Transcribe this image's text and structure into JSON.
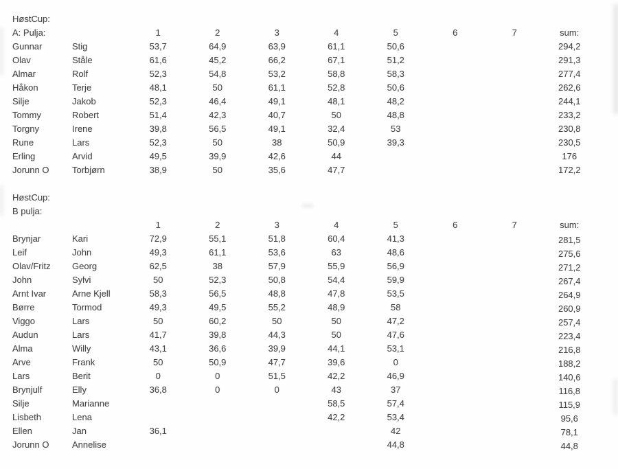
{
  "colors": {
    "text": "#454545",
    "background": "#fefefe"
  },
  "tables": [
    {
      "title": "HøstCup:",
      "subtitle": "A: Pulja:",
      "header": {
        "rounds": [
          "1",
          "2",
          "3",
          "4",
          "5",
          "6",
          "7"
        ],
        "sum": "sum:"
      },
      "rows": [
        [
          "Gunnar",
          "Stig",
          "53,7",
          "64,9",
          "63,9",
          "61,1",
          "50,6",
          "",
          "",
          "294,2"
        ],
        [
          "Olav",
          "Ståle",
          "61,6",
          "45,2",
          "66,2",
          "67,1",
          "51,2",
          "",
          "",
          "291,3"
        ],
        [
          "Almar",
          "Rolf",
          "52,3",
          "54,8",
          "53,2",
          "58,8",
          "58,3",
          "",
          "",
          "277,4"
        ],
        [
          "Håkon",
          "Terje",
          "48,1",
          "50",
          "61,1",
          "52,8",
          "50,6",
          "",
          "",
          "262,6"
        ],
        [
          "Silje",
          "Jakob",
          "52,3",
          "46,4",
          "49,1",
          "48,1",
          "48,2",
          "",
          "",
          "244,1"
        ],
        [
          "Tommy",
          "Robert",
          "51,4",
          "42,3",
          "40,7",
          "50",
          "48,8",
          "",
          "",
          "233,2"
        ],
        [
          "Torgny",
          "Irene",
          "39,8",
          "56,5",
          "49,1",
          "32,4",
          "53",
          "",
          "",
          "230,8"
        ],
        [
          "Rune",
          "Lars",
          "52,3",
          "50",
          "38",
          "50,9",
          "39,3",
          "",
          "",
          "230,5"
        ],
        [
          "Erling",
          "Arvid",
          "49,5",
          "39,9",
          "42,6",
          "44",
          "",
          "",
          "",
          "176"
        ],
        [
          "Jorunn O",
          "Torbjørn",
          "38,9",
          "50",
          "35,6",
          "47,7",
          "",
          "",
          "",
          "172,2"
        ]
      ]
    },
    {
      "title": "HøstCup:",
      "subtitle": "B pulja:",
      "header": {
        "rounds": [
          "1",
          "2",
          "3",
          "4",
          "5",
          "6",
          "7"
        ],
        "sum": "sum:"
      },
      "rows": [
        [
          "Brynjar",
          "Kari",
          "72,9",
          "55,1",
          "51,8",
          "60,4",
          "41,3",
          "",
          "",
          "281,5"
        ],
        [
          "Leif",
          "John",
          "49,3",
          "61,1",
          "53,6",
          "63",
          "48,6",
          "",
          "",
          "275,6"
        ],
        [
          "Olav/Fritz",
          "Georg",
          "62,5",
          "38",
          "57,9",
          "55,9",
          "56,9",
          "",
          "",
          "271,2"
        ],
        [
          "John",
          "Sylvi",
          "50",
          "52,3",
          "50,8",
          "54,4",
          "59,9",
          "",
          "",
          "267,4"
        ],
        [
          "Arnt Ivar",
          "Arne Kjell",
          "58,3",
          "56,5",
          "48,8",
          "47,8",
          "53,5",
          "",
          "",
          "264,9"
        ],
        [
          "Børre",
          "Tormod",
          "49,3",
          "49,5",
          "55,2",
          "48,9",
          "58",
          "",
          "",
          "260,9"
        ],
        [
          "Viggo",
          "Lars",
          "50",
          "60,2",
          "50",
          "50",
          "47,2",
          "",
          "",
          "257,4"
        ],
        [
          "Audun",
          "Lars",
          "41,7",
          "39,8",
          "44,3",
          "50",
          "47,6",
          "",
          "",
          "223,4"
        ],
        [
          "Alma",
          "Willy",
          "43,1",
          "36,6",
          "39,9",
          "44,1",
          "53,1",
          "",
          "",
          "216,8"
        ],
        [
          "Arve",
          "Frank",
          "50",
          "50,9",
          "47,7",
          "39,6",
          "0",
          "",
          "",
          "188,2"
        ],
        [
          "Lars",
          "Berit",
          "0",
          "0",
          "51,5",
          "42,2",
          "46,9",
          "",
          "",
          "140,6"
        ],
        [
          "Brynjulf",
          "Elly",
          "36,8",
          "0",
          "0",
          "43",
          "37",
          "",
          "",
          "116,8"
        ],
        [
          "Silje",
          "Marianne",
          "",
          "",
          "",
          "58,5",
          "57,4",
          "",
          "",
          "115,9"
        ],
        [
          "Lisbeth",
          "Lena",
          "",
          "",
          "",
          "42,2",
          "53,4",
          "",
          "",
          "95,6"
        ],
        [
          "Ellen",
          "Jan",
          "36,1",
          "",
          "",
          "",
          "42",
          "",
          "",
          "78,1"
        ],
        [
          "Jorunn O",
          "Annelise",
          "",
          "",
          "",
          "",
          "44,8",
          "",
          "",
          "44,8"
        ]
      ]
    }
  ]
}
